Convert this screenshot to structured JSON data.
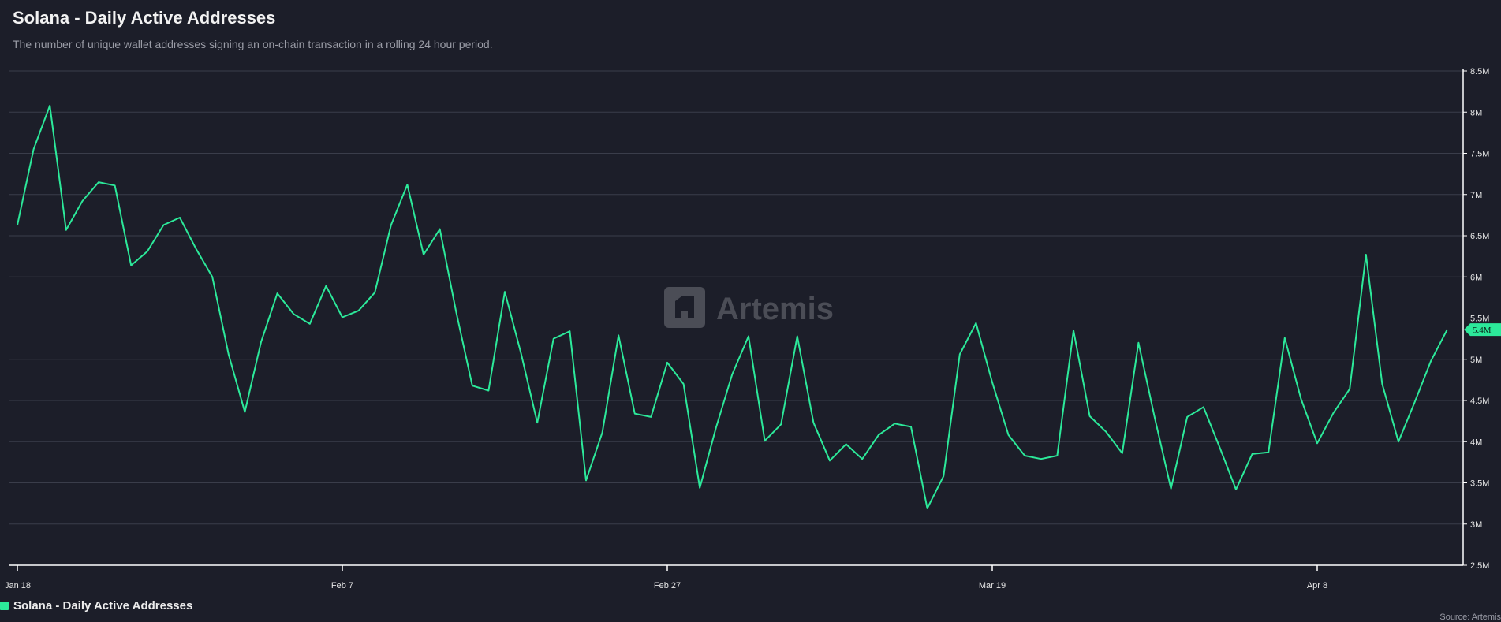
{
  "header": {
    "title": "Solana - Daily Active Addresses",
    "subtitle": "The number of unique wallet addresses signing an on-chain transaction in a rolling 24 hour period."
  },
  "watermark": {
    "text": "Artemis",
    "icon": "artemis-logo-icon"
  },
  "legend": {
    "label": "Solana - Daily Active Addresses"
  },
  "source": "Source: Artemis",
  "colors": {
    "background": "#1c1e29",
    "line": "#2ce99a",
    "grid": "#3a3d4a",
    "axis": "#ffffff",
    "tick_text": "#e6e6e6"
  },
  "chart_data": {
    "type": "line",
    "x_axis": {
      "start_date": "2024-01-18",
      "ticks": [
        "Jan 18",
        "Feb 7",
        "Feb 27",
        "Mar 19",
        "Apr 8"
      ]
    },
    "y_axis": {
      "position": "right",
      "ylim": [
        2500000,
        8500000
      ],
      "ticks": [
        {
          "value": 2500000,
          "label": "2.5M"
        },
        {
          "value": 3000000,
          "label": "3M"
        },
        {
          "value": 3500000,
          "label": "3.5M"
        },
        {
          "value": 4000000,
          "label": "4M"
        },
        {
          "value": 4500000,
          "label": "4.5M"
        },
        {
          "value": 5000000,
          "label": "5M"
        },
        {
          "value": 5500000,
          "label": "5.5M"
        },
        {
          "value": 6000000,
          "label": "6M"
        },
        {
          "value": 6500000,
          "label": "6.5M"
        },
        {
          "value": 7000000,
          "label": "7M"
        },
        {
          "value": 7500000,
          "label": "7.5M"
        },
        {
          "value": 8000000,
          "label": "8M"
        },
        {
          "value": 8500000,
          "label": "8.5M"
        }
      ]
    },
    "grid": true,
    "last_value_label": "5.4M",
    "series": [
      {
        "name": "Solana - Daily Active Addresses",
        "values": [
          6630000,
          7550000,
          8080000,
          6570000,
          6920000,
          7150000,
          7110000,
          6140000,
          6310000,
          6630000,
          6720000,
          6340000,
          6000000,
          5060000,
          4360000,
          5210000,
          5800000,
          5550000,
          5430000,
          5890000,
          5510000,
          5590000,
          5810000,
          6630000,
          7120000,
          6270000,
          6580000,
          5580000,
          4680000,
          4620000,
          5820000,
          5070000,
          4230000,
          5250000,
          5340000,
          3530000,
          4110000,
          5290000,
          4340000,
          4300000,
          4960000,
          4700000,
          3440000,
          4170000,
          4820000,
          5280000,
          4010000,
          4210000,
          5280000,
          4230000,
          3770000,
          3970000,
          3790000,
          4080000,
          4220000,
          4180000,
          3190000,
          3580000,
          5060000,
          5440000,
          4720000,
          4080000,
          3830000,
          3790000,
          3830000,
          5350000,
          4310000,
          4120000,
          3860000,
          5200000,
          4290000,
          3430000,
          4300000,
          4420000,
          3930000,
          3420000,
          3850000,
          3870000,
          5260000,
          4520000,
          3980000,
          4350000,
          4640000,
          6270000,
          4700000,
          4000000,
          4480000,
          4980000,
          5360000
        ]
      }
    ]
  }
}
